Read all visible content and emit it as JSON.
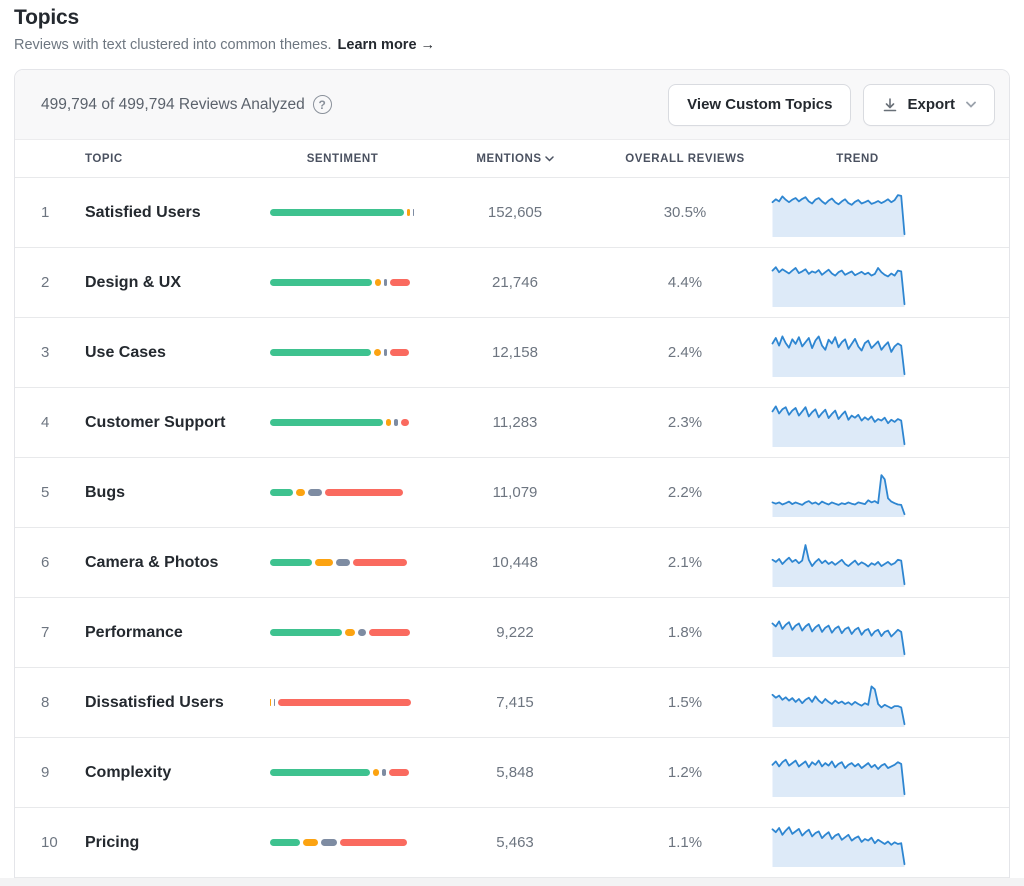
{
  "page": {
    "title": "Topics",
    "subtitle": "Reviews with text clustered into common themes.",
    "learn_more": "Learn more →"
  },
  "card": {
    "analyzed_text": "499,794 of 499,794 Reviews Analyzed",
    "buttons": {
      "view_custom_topics": "View Custom Topics",
      "export": "Export"
    }
  },
  "colors": {
    "positive": "#3ec28f",
    "neutral": "#fca311",
    "mixed": "#7e8ca2",
    "negative": "#fa6a5f",
    "spark_line": "#2e86d1",
    "spark_fill": "#ddeaf8"
  },
  "table": {
    "columns": {
      "topic": "Topic",
      "sentiment": "Sentiment",
      "mentions": "Mentions",
      "overall": "Overall Reviews",
      "trend": "Trend"
    },
    "sorted_by": "mentions",
    "rows": [
      {
        "rank": "1",
        "topic": "Satisfied Users",
        "mentions": "152,605",
        "overall": "30.5%",
        "sentiment": [
          94,
          3,
          2,
          0
        ],
        "trend": [
          0.78,
          0.85,
          0.8,
          0.92,
          0.84,
          0.78,
          0.84,
          0.88,
          0.8,
          0.86,
          0.9,
          0.8,
          0.75,
          0.84,
          0.88,
          0.8,
          0.74,
          0.82,
          0.87,
          0.78,
          0.73,
          0.8,
          0.85,
          0.76,
          0.72,
          0.79,
          0.83,
          0.75,
          0.78,
          0.82,
          0.74,
          0.77,
          0.81,
          0.76,
          0.8,
          0.85,
          0.78,
          0.83,
          0.95,
          0.93,
          0.02
        ]
      },
      {
        "rank": "2",
        "topic": "Design & UX",
        "mentions": "21,746",
        "overall": "4.4%",
        "sentiment": [
          72,
          5,
          4,
          15
        ],
        "trend": [
          0.82,
          0.9,
          0.78,
          0.85,
          0.8,
          0.75,
          0.82,
          0.88,
          0.76,
          0.8,
          0.85,
          0.74,
          0.8,
          0.77,
          0.83,
          0.72,
          0.78,
          0.84,
          0.75,
          0.7,
          0.78,
          0.82,
          0.72,
          0.76,
          0.8,
          0.71,
          0.75,
          0.79,
          0.73,
          0.77,
          0.7,
          0.74,
          0.88,
          0.78,
          0.72,
          0.68,
          0.75,
          0.7,
          0.82,
          0.8,
          0.02
        ]
      },
      {
        "rank": "3",
        "topic": "Use Cases",
        "mentions": "12,158",
        "overall": "2.4%",
        "sentiment": [
          71,
          6,
          4,
          14
        ],
        "trend": [
          0.75,
          0.88,
          0.7,
          0.92,
          0.76,
          0.65,
          0.85,
          0.74,
          0.9,
          0.68,
          0.78,
          0.88,
          0.64,
          0.82,
          0.92,
          0.7,
          0.6,
          0.84,
          0.75,
          0.9,
          0.66,
          0.78,
          0.85,
          0.62,
          0.74,
          0.86,
          0.68,
          0.58,
          0.76,
          0.82,
          0.64,
          0.72,
          0.8,
          0.6,
          0.7,
          0.78,
          0.55,
          0.68,
          0.75,
          0.7,
          0.02
        ]
      },
      {
        "rank": "4",
        "topic": "Customer Support",
        "mentions": "11,283",
        "overall": "2.3%",
        "sentiment": [
          79,
          5,
          4,
          7
        ],
        "trend": [
          0.8,
          0.92,
          0.75,
          0.85,
          0.9,
          0.72,
          0.82,
          0.88,
          0.7,
          0.8,
          0.9,
          0.68,
          0.78,
          0.85,
          0.66,
          0.76,
          0.84,
          0.64,
          0.74,
          0.82,
          0.62,
          0.72,
          0.8,
          0.6,
          0.7,
          0.65,
          0.72,
          0.58,
          0.66,
          0.6,
          0.68,
          0.55,
          0.62,
          0.58,
          0.65,
          0.52,
          0.6,
          0.55,
          0.62,
          0.58,
          0.02
        ]
      },
      {
        "rank": "5",
        "topic": "Bugs",
        "mentions": "11,079",
        "overall": "2.2%",
        "sentiment": [
          17,
          8,
          11,
          55
        ],
        "trend": [
          0.3,
          0.27,
          0.3,
          0.25,
          0.28,
          0.32,
          0.26,
          0.3,
          0.27,
          0.24,
          0.3,
          0.33,
          0.27,
          0.3,
          0.25,
          0.32,
          0.28,
          0.25,
          0.3,
          0.27,
          0.24,
          0.28,
          0.26,
          0.3,
          0.27,
          0.25,
          0.3,
          0.28,
          0.26,
          0.35,
          0.3,
          0.33,
          0.28,
          0.95,
          0.85,
          0.4,
          0.32,
          0.28,
          0.25,
          0.24,
          0.02
        ]
      },
      {
        "rank": "6",
        "topic": "Camera & Photos",
        "mentions": "10,448",
        "overall": "2.1%",
        "sentiment": [
          30,
          14,
          11,
          39
        ],
        "trend": [
          0.6,
          0.55,
          0.62,
          0.5,
          0.58,
          0.65,
          0.55,
          0.6,
          0.52,
          0.58,
          0.95,
          0.6,
          0.45,
          0.55,
          0.62,
          0.52,
          0.58,
          0.5,
          0.55,
          0.48,
          0.54,
          0.6,
          0.5,
          0.45,
          0.52,
          0.58,
          0.48,
          0.54,
          0.5,
          0.44,
          0.52,
          0.48,
          0.55,
          0.45,
          0.5,
          0.55,
          0.48,
          0.52,
          0.6,
          0.58,
          0.02
        ]
      },
      {
        "rank": "7",
        "topic": "Performance",
        "mentions": "9,222",
        "overall": "1.8%",
        "sentiment": [
          51,
          8,
          7,
          30
        ],
        "trend": [
          0.75,
          0.68,
          0.8,
          0.62,
          0.72,
          0.78,
          0.6,
          0.7,
          0.75,
          0.58,
          0.68,
          0.74,
          0.56,
          0.66,
          0.72,
          0.55,
          0.65,
          0.7,
          0.53,
          0.63,
          0.68,
          0.52,
          0.62,
          0.66,
          0.5,
          0.6,
          0.65,
          0.48,
          0.58,
          0.62,
          0.46,
          0.56,
          0.6,
          0.45,
          0.55,
          0.58,
          0.44,
          0.52,
          0.6,
          0.55,
          0.02
        ]
      },
      {
        "rank": "8",
        "topic": "Dissatisfied Users",
        "mentions": "7,415",
        "overall": "1.5%",
        "sentiment": [
          0,
          2,
          2,
          93
        ],
        "trend": [
          0.72,
          0.65,
          0.7,
          0.6,
          0.66,
          0.58,
          0.64,
          0.55,
          0.62,
          0.52,
          0.6,
          0.65,
          0.55,
          0.68,
          0.58,
          0.52,
          0.62,
          0.55,
          0.5,
          0.58,
          0.52,
          0.56,
          0.5,
          0.54,
          0.48,
          0.55,
          0.5,
          0.46,
          0.52,
          0.48,
          0.92,
          0.85,
          0.5,
          0.42,
          0.48,
          0.44,
          0.4,
          0.45,
          0.45,
          0.42,
          0.02
        ]
      },
      {
        "rank": "9",
        "topic": "Complexity",
        "mentions": "5,848",
        "overall": "1.2%",
        "sentiment": [
          70,
          6,
          4,
          15
        ],
        "trend": [
          0.72,
          0.8,
          0.68,
          0.78,
          0.84,
          0.7,
          0.76,
          0.82,
          0.68,
          0.74,
          0.8,
          0.66,
          0.78,
          0.72,
          0.82,
          0.68,
          0.76,
          0.7,
          0.8,
          0.66,
          0.74,
          0.78,
          0.64,
          0.72,
          0.76,
          0.68,
          0.74,
          0.64,
          0.7,
          0.76,
          0.66,
          0.72,
          0.62,
          0.7,
          0.74,
          0.64,
          0.68,
          0.72,
          0.78,
          0.74,
          0.02
        ]
      },
      {
        "rank": "10",
        "topic": "Pricing",
        "mentions": "5,463",
        "overall": "1.1%",
        "sentiment": [
          22,
          12,
          12,
          48
        ],
        "trend": [
          0.85,
          0.78,
          0.88,
          0.72,
          0.82,
          0.9,
          0.74,
          0.8,
          0.86,
          0.7,
          0.78,
          0.84,
          0.68,
          0.76,
          0.8,
          0.64,
          0.72,
          0.78,
          0.62,
          0.7,
          0.74,
          0.6,
          0.66,
          0.72,
          0.58,
          0.64,
          0.68,
          0.55,
          0.62,
          0.58,
          0.65,
          0.52,
          0.6,
          0.55,
          0.5,
          0.56,
          0.48,
          0.54,
          0.5,
          0.52,
          0.02
        ]
      }
    ]
  }
}
